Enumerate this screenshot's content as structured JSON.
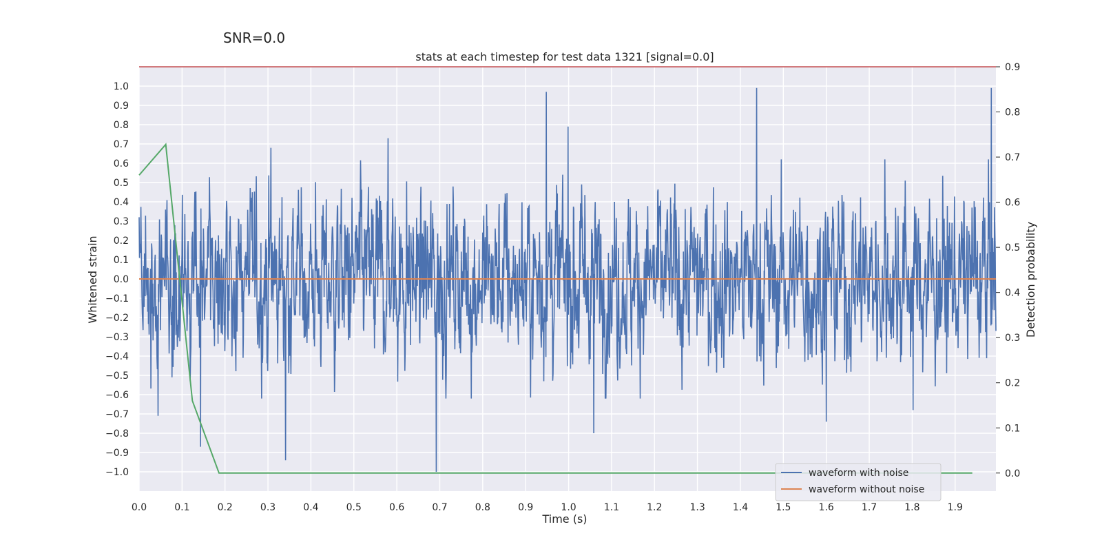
{
  "colors": {
    "background": "#ffffff",
    "axes_face": "#eaeaf2",
    "grid": "#ffffff",
    "noisy": "#4c72b0",
    "clean": "#dd8452",
    "probability": "#55a868",
    "threshold": "#c44e52"
  },
  "chart_data": {
    "type": "line",
    "suptitle": "SNR=0.0",
    "title": "stats at each timestep for test data 1321 [signal=0.0]",
    "xlabel": "Time (s)",
    "ylabel": "Whitened strain",
    "ylabel_right": "Detection probability",
    "xlim": [
      0.0,
      1.995
    ],
    "ylim": [
      -1.1,
      1.1
    ],
    "ylim_right": [
      -0.04,
      0.9
    ],
    "xticks": [
      0.0,
      0.1,
      0.2,
      0.3,
      0.4,
      0.5,
      0.6,
      0.7,
      0.8,
      0.9,
      1.0,
      1.1,
      1.2,
      1.3,
      1.4,
      1.5,
      1.6,
      1.7,
      1.8,
      1.9
    ],
    "xtick_labels": [
      "0.0",
      "0.1",
      "0.2",
      "0.3",
      "0.4",
      "0.5",
      "0.6",
      "0.7",
      "0.8",
      "0.9",
      "1.0",
      "1.1",
      "1.2",
      "1.3",
      "1.4",
      "1.5",
      "1.6",
      "1.7",
      "1.8",
      "1.9"
    ],
    "yticks": [
      -1.0,
      -0.9,
      -0.8,
      -0.7,
      -0.6,
      -0.5,
      -0.4,
      -0.3,
      -0.2,
      -0.1,
      0.0,
      0.1,
      0.2,
      0.3,
      0.4,
      0.5,
      0.6,
      0.7,
      0.8,
      0.9,
      1.0
    ],
    "ytick_labels": [
      "−1.0",
      "−0.9",
      "−0.8",
      "−0.7",
      "−0.6",
      "−0.5",
      "−0.4",
      "−0.3",
      "−0.2",
      "−0.1",
      "0.0",
      "0.1",
      "0.2",
      "0.3",
      "0.4",
      "0.5",
      "0.6",
      "0.7",
      "0.8",
      "0.9",
      "1.0"
    ],
    "yticks_right": [
      0.0,
      0.1,
      0.2,
      0.3,
      0.4,
      0.5,
      0.6,
      0.7,
      0.8,
      0.9
    ],
    "ytick_labels_right": [
      "0.0",
      "0.1",
      "0.2",
      "0.3",
      "0.4",
      "0.5",
      "0.6",
      "0.7",
      "0.8",
      "0.9"
    ],
    "grid": true,
    "legend_position": "lower-right",
    "threshold_line": {
      "y_right": 0.9,
      "label": ""
    },
    "series": [
      {
        "name": "waveform with noise",
        "axis": "left",
        "style": "noise",
        "x_range": [
          0.0,
          1.995
        ],
        "samples": 2400,
        "approx_std": 0.22,
        "peaks": [
          {
            "x": 0.948,
            "y": 0.97
          },
          {
            "x": 0.999,
            "y": 0.79
          },
          {
            "x": 1.438,
            "y": 0.99
          },
          {
            "x": 1.984,
            "y": 0.99
          },
          {
            "x": 0.692,
            "y": -1.0
          },
          {
            "x": 0.341,
            "y": -0.94
          },
          {
            "x": 0.143,
            "y": -0.87
          },
          {
            "x": 0.044,
            "y": -0.71
          },
          {
            "x": 1.059,
            "y": -0.8
          },
          {
            "x": 0.58,
            "y": 0.73
          },
          {
            "x": 0.307,
            "y": 0.68
          },
          {
            "x": 1.6,
            "y": -0.74
          },
          {
            "x": 1.802,
            "y": -0.68
          },
          {
            "x": 1.736,
            "y": 0.62
          }
        ]
      },
      {
        "name": "waveform without noise",
        "axis": "left",
        "x": [
          0.0,
          1.995
        ],
        "y": [
          0.0,
          0.0
        ]
      },
      {
        "name": "detection probability",
        "axis": "right",
        "x": [
          0.0,
          0.062,
          0.124,
          0.186,
          0.248,
          0.31,
          1.94
        ],
        "y": [
          0.66,
          0.728,
          0.16,
          0.0,
          0.0,
          0.0,
          0.0
        ]
      }
    ],
    "legend": [
      "waveform with noise",
      "waveform without noise"
    ]
  }
}
